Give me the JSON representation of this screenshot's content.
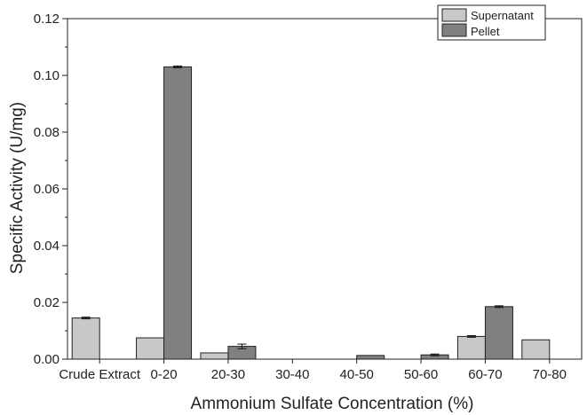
{
  "chart_data": {
    "type": "bar",
    "title": "",
    "xlabel": "Ammonium Sulfate Concentration (%)",
    "ylabel": "Specific Activity (U/mg)",
    "ylim": [
      0,
      0.12
    ],
    "yticks": [
      "0.00",
      "0.02",
      "0.04",
      "0.06",
      "0.08",
      "0.10",
      "0.12"
    ],
    "categories": [
      "Crude Extract",
      "0-20",
      "20-30",
      "30-40",
      "40-50",
      "50-60",
      "60-70",
      "70-80"
    ],
    "grid": false,
    "legend_position": "top-right",
    "series": [
      {
        "name": "Supernatant",
        "color": "#c8c8c8",
        "values": [
          0.0145,
          0.0075,
          0.0022,
          0,
          0,
          0,
          0.008,
          0.0068
        ],
        "errors": [
          0.0003,
          0,
          0,
          0,
          0,
          0,
          0.0003,
          0
        ]
      },
      {
        "name": "Pellet",
        "color": "#808080",
        "values": [
          0,
          0.103,
          0.0045,
          0,
          0.0013,
          0.0015,
          0.0185,
          0
        ],
        "errors": [
          0,
          0.0003,
          0.0008,
          0,
          0,
          0.0003,
          0.0003,
          0
        ]
      }
    ]
  }
}
